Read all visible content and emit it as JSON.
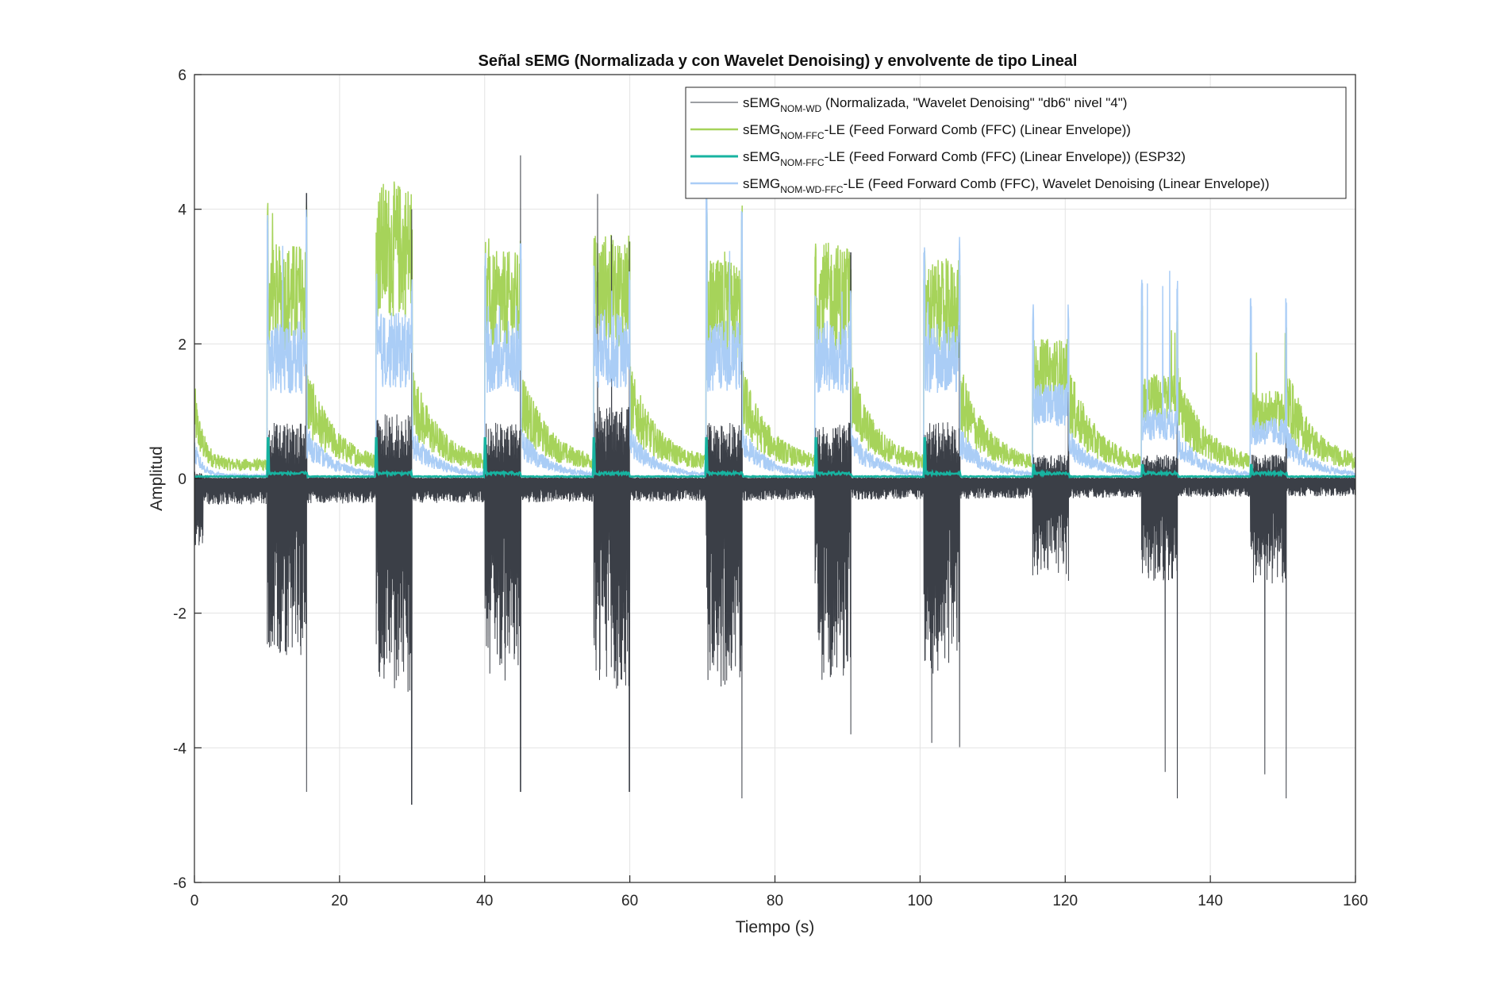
{
  "chart_data": {
    "type": "line",
    "title": "Señal sEMG (Normalizada y con Wavelet Denoising) y envolvente de tipo Lineal",
    "xlabel": "Tiempo (s)",
    "ylabel": "Amplitud",
    "xlim": [
      0,
      160
    ],
    "ylim": [
      -6,
      6
    ],
    "xticks": [
      0,
      20,
      40,
      60,
      80,
      100,
      120,
      140,
      160
    ],
    "yticks": [
      -6,
      -4,
      -2,
      0,
      2,
      4,
      6
    ],
    "xtick_labels": [
      "0",
      "20",
      "40",
      "60",
      "80",
      "100",
      "120",
      "140",
      "160"
    ],
    "ytick_labels": [
      "-6",
      "-4",
      "-2",
      "0",
      "2",
      "4",
      "6"
    ],
    "grid": true,
    "legend_position": "top-right",
    "colors": {
      "raw": "#3b3f47",
      "ffc": "#a6d35a",
      "esp32": "#17b3a0",
      "wd_ffc": "#aacdf6"
    },
    "series": [
      {
        "id": "raw",
        "legend_base": "sEMG",
        "legend_sub": "NOM-WD",
        "legend_rest": " (Normalizada, \"Wavelet Denoising\" \"db6\" nivel \"4\")",
        "baseline": [
          -0.3,
          -0.2
        ],
        "bursts": [
          {
            "start": 10,
            "end": 15.5,
            "upper": 0.7,
            "lower": -2.2,
            "max": 5.3,
            "min": -4.9
          },
          {
            "start": 25,
            "end": 30,
            "upper": 0.8,
            "lower": -2.8,
            "max": 5.0,
            "min": -5.1
          },
          {
            "start": 40,
            "end": 45,
            "upper": 0.7,
            "lower": -2.5,
            "max": 6.0,
            "min": -4.9
          },
          {
            "start": 55,
            "end": 60,
            "upper": 0.9,
            "lower": -2.6,
            "max": 4.4,
            "min": -4.9
          },
          {
            "start": 70.5,
            "end": 75.5,
            "upper": 0.7,
            "lower": -2.6,
            "max": 4.2,
            "min": -5.0
          },
          {
            "start": 85.5,
            "end": 90.5,
            "upper": 0.7,
            "lower": -2.5,
            "max": 4.2,
            "min": -4.0
          },
          {
            "start": 100.5,
            "end": 105.5,
            "upper": 0.7,
            "lower": -2.5,
            "max": 4.2,
            "min": -4.2
          },
          {
            "start": 115.5,
            "end": 120.5,
            "upper": 0.3,
            "lower": -1.2,
            "max": 2.3,
            "min": -1.6
          },
          {
            "start": 130.5,
            "end": 135.5,
            "upper": 0.3,
            "lower": -1.3,
            "max": 2.6,
            "min": -5.0
          },
          {
            "start": 145.5,
            "end": 150.5,
            "upper": 0.3,
            "lower": -1.3,
            "max": 3.0,
            "min": -5.0
          }
        ]
      },
      {
        "id": "ffc",
        "legend_base": "sEMG",
        "legend_sub": "NOM-FFC",
        "legend_rest": "-LE (Feed Forward Comb (FFC) (Linear Envelope))",
        "baseline": 0.2,
        "start_level": 1.0,
        "decay_peak": 1.0,
        "burst_levels": [
          2.7,
          3.4,
          2.6,
          2.8,
          2.5,
          2.7,
          2.5,
          1.6,
          1.2,
          1.0
        ],
        "burst_peaks": [
          4.2,
          3.8,
          3.6,
          3.6,
          4.2,
          3.6,
          3.4,
          2.2,
          2.6,
          2.4
        ]
      },
      {
        "id": "esp32",
        "legend_base": "sEMG",
        "legend_sub": "NOM-FFC",
        "legend_rest": "-LE (Feed Forward Comb (FFC) (Linear Envelope)) (ESP32)",
        "baseline": 0.03,
        "burst_level": 0.08
      },
      {
        "id": "wd_ffc",
        "legend_base": "sEMG",
        "legend_sub": "NOM-WD-FFC",
        "legend_rest": "-LE (Feed Forward Comb (FFC), Wavelet Denoising (Linear Envelope))",
        "baseline": 0.04,
        "start_level": 0.4,
        "decay_peak": 0.5,
        "burst_levels": [
          1.8,
          1.9,
          1.8,
          1.9,
          1.8,
          1.8,
          1.8,
          1.1,
          0.8,
          0.7
        ],
        "burst_peaks": [
          4.0,
          3.2,
          3.5,
          3.2,
          4.3,
          2.8,
          3.6,
          2.6,
          3.1,
          2.8
        ]
      }
    ]
  }
}
